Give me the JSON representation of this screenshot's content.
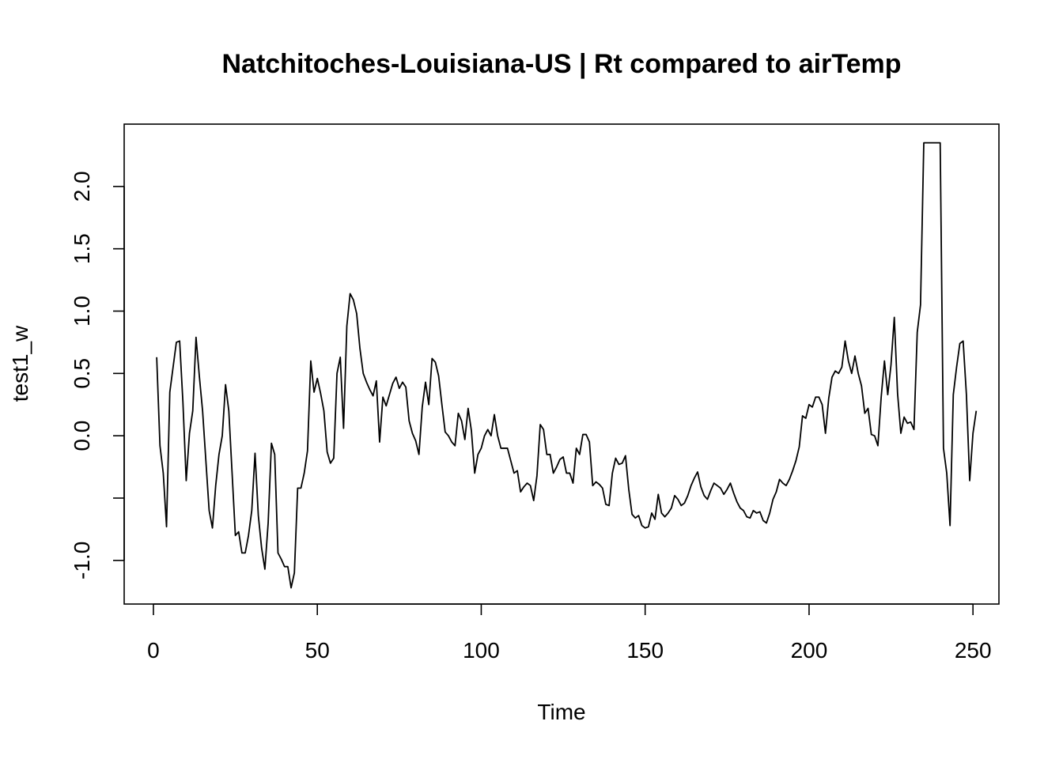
{
  "chart_data": {
    "type": "line",
    "title": "Natchitoches-Louisiana-US | Rt compared to airTemp",
    "xlabel": "Time",
    "ylabel": "test1_w",
    "xlim": [
      -8.92,
      257.92
    ],
    "ylim": [
      -1.35,
      2.5
    ],
    "x_ticks": [
      0,
      50,
      100,
      150,
      200,
      250
    ],
    "x_tick_labels": [
      "0",
      "50",
      "100",
      "150",
      "200",
      "250"
    ],
    "y_ticks": [
      -1.0,
      -0.5,
      0.0,
      0.5,
      1.0,
      1.5,
      2.0
    ],
    "y_tick_labels": [
      "-1.0",
      "",
      "0.0",
      "0.5",
      "1.0",
      "1.5",
      "2.0"
    ],
    "grid": false,
    "legend": "none",
    "line_color": "#000000",
    "series": [
      {
        "x_start": 1,
        "values": [
          0.63,
          -0.08,
          -0.3,
          -0.73,
          0.35,
          0.55,
          0.75,
          0.76,
          0.27,
          -0.36,
          0.02,
          0.2,
          0.79,
          0.48,
          0.2,
          -0.2,
          -0.6,
          -0.74,
          -0.4,
          -0.15,
          0.0,
          0.41,
          0.2,
          -0.3,
          -0.8,
          -0.77,
          -0.94,
          -0.94,
          -0.8,
          -0.6,
          -0.14,
          -0.64,
          -0.9,
          -1.07,
          -0.7,
          -0.06,
          -0.15,
          -0.94,
          -0.99,
          -1.05,
          -1.05,
          -1.22,
          -1.1,
          -0.42,
          -0.42,
          -0.3,
          -0.12,
          0.6,
          0.35,
          0.46,
          0.34,
          0.2,
          -0.13,
          -0.22,
          -0.18,
          0.5,
          0.63,
          0.06,
          0.88,
          1.14,
          1.09,
          0.98,
          0.7,
          0.5,
          0.43,
          0.37,
          0.32,
          0.44,
          -0.05,
          0.31,
          0.24,
          0.33,
          0.42,
          0.47,
          0.38,
          0.43,
          0.39,
          0.12,
          0.02,
          -0.04,
          -0.15,
          0.23,
          0.43,
          0.25,
          0.62,
          0.59,
          0.48,
          0.25,
          0.03,
          0.0,
          -0.05,
          -0.08,
          0.18,
          0.12,
          -0.03,
          0.22,
          0.04,
          -0.3,
          -0.15,
          -0.1,
          0.0,
          0.05,
          0.0,
          0.17,
          0.0,
          -0.1,
          -0.1,
          -0.1,
          -0.2,
          -0.3,
          -0.28,
          -0.45,
          -0.41,
          -0.38,
          -0.4,
          -0.52,
          -0.32,
          0.09,
          0.05,
          -0.15,
          -0.15,
          -0.3,
          -0.25,
          -0.19,
          -0.17,
          -0.3,
          -0.3,
          -0.38,
          -0.1,
          -0.15,
          0.01,
          0.01,
          -0.05,
          -0.4,
          -0.37,
          -0.39,
          -0.42,
          -0.55,
          -0.56,
          -0.3,
          -0.18,
          -0.23,
          -0.22,
          -0.16,
          -0.43,
          -0.63,
          -0.66,
          -0.64,
          -0.72,
          -0.74,
          -0.73,
          -0.62,
          -0.67,
          -0.47,
          -0.62,
          -0.65,
          -0.62,
          -0.58,
          -0.48,
          -0.51,
          -0.56,
          -0.54,
          -0.48,
          -0.4,
          -0.34,
          -0.29,
          -0.41,
          -0.48,
          -0.51,
          -0.44,
          -0.38,
          -0.4,
          -0.42,
          -0.47,
          -0.43,
          -0.38,
          -0.46,
          -0.53,
          -0.58,
          -0.6,
          -0.65,
          -0.66,
          -0.6,
          -0.62,
          -0.61,
          -0.68,
          -0.7,
          -0.62,
          -0.51,
          -0.45,
          -0.35,
          -0.38,
          -0.4,
          -0.35,
          -0.28,
          -0.2,
          -0.09,
          0.16,
          0.14,
          0.25,
          0.23,
          0.31,
          0.31,
          0.25,
          0.02,
          0.3,
          0.47,
          0.52,
          0.5,
          0.55,
          0.76,
          0.6,
          0.5,
          0.64,
          0.5,
          0.4,
          0.18,
          0.22,
          0.01,
          0.0,
          -0.08,
          0.31,
          0.6,
          0.33,
          0.57,
          0.95,
          0.34,
          0.02,
          0.15,
          0.1,
          0.11,
          0.05,
          0.83,
          1.05,
          2.35,
          2.35,
          2.35,
          2.35,
          2.35,
          2.35,
          -0.1,
          -0.3,
          -0.72,
          0.33,
          0.55,
          0.74,
          0.76,
          0.33,
          -0.36,
          0.02,
          0.2
        ]
      }
    ]
  }
}
